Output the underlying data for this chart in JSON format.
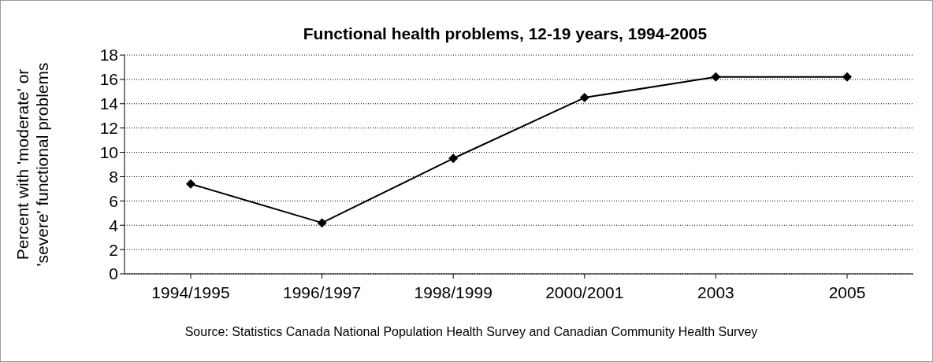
{
  "chart_data": {
    "type": "line",
    "title": "Functional health problems, 12-19 years, 1994-2005",
    "ylabel": "Percent with 'moderate' or 'severe' functional problems",
    "categories": [
      "1994/1995",
      "1996/1997",
      "1998/1999",
      "2000/2001",
      "2003",
      "2005"
    ],
    "series": [
      {
        "color": "#000000",
        "values": [
          7.4,
          4.2,
          9.5,
          14.5,
          16.2,
          16.2
        ]
      }
    ],
    "ylim": [
      0,
      18
    ],
    "yticks": [
      0,
      2,
      4,
      6,
      8,
      10,
      12,
      14,
      16,
      18
    ],
    "grid": "y",
    "marker": "diamond",
    "line_style": "solid",
    "annotations": [
      "Source: Statistics Canada National Population Health Survey and Canadian Community Health Survey"
    ]
  }
}
